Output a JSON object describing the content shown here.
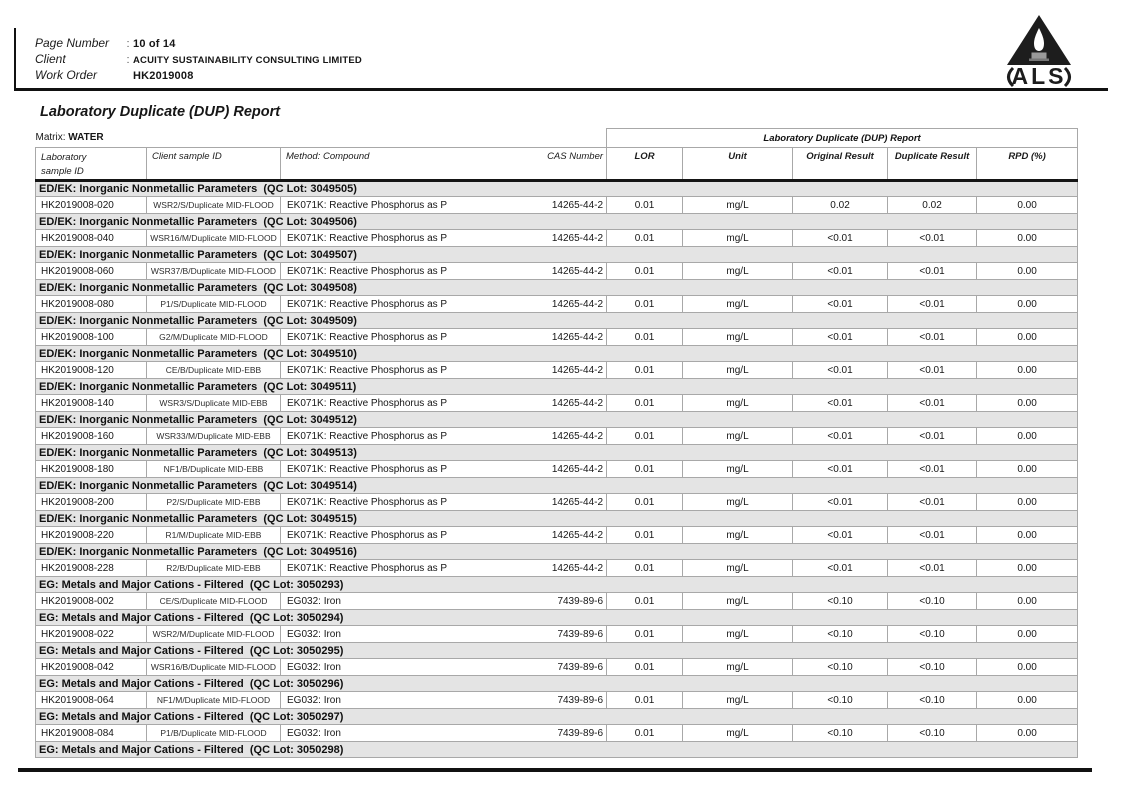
{
  "header": {
    "fields": [
      {
        "label": "Page Number",
        "sep": ":",
        "value": "10 of 14"
      },
      {
        "label": "Client",
        "sep": ":",
        "value": "ACUITY SUSTAINABILITY CONSULTING LIMITED"
      },
      {
        "label": "Work Order",
        "sep": "",
        "value": "HK2019008"
      }
    ],
    "logo": {
      "text": "ALS"
    }
  },
  "title": "Laboratory Duplicate (DUP) Report",
  "matrix": {
    "label": "Matrix:",
    "value": "WATER"
  },
  "table": {
    "group_header": "Laboratory Duplicate (DUP) Report",
    "columns": {
      "laboratory_line1": "Laboratory",
      "laboratory_line2": "sample ID",
      "client": "Client sample ID",
      "method": "Method: Compound",
      "cas": "CAS Number",
      "lor": "LOR",
      "unit": "Unit",
      "original": "Original Result",
      "duplicate": "Duplicate Result",
      "rpd": "RPD (%)"
    },
    "sections": [
      {
        "header": "ED/EK: Inorganic Nonmetallic Parameters  (QC Lot: 3049505)",
        "rows": [
          {
            "lab_id": "HK2019008-020",
            "client_id": "WSR2/S/Duplicate MID-FLOOD",
            "method": "EK071K: Reactive Phosphorus as P",
            "cas": "14265-44-2",
            "lor": "0.01",
            "unit": "mg/L",
            "original": "0.02",
            "duplicate": "0.02",
            "rpd": "0.00"
          }
        ]
      },
      {
        "header": "ED/EK: Inorganic Nonmetallic Parameters  (QC Lot: 3049506)",
        "rows": [
          {
            "lab_id": "HK2019008-040",
            "client_id": "WSR16/M/Duplicate MID-FLOOD",
            "method": "EK071K: Reactive Phosphorus as P",
            "cas": "14265-44-2",
            "lor": "0.01",
            "unit": "mg/L",
            "original": "<0.01",
            "duplicate": "<0.01",
            "rpd": "0.00"
          }
        ]
      },
      {
        "header": "ED/EK: Inorganic Nonmetallic Parameters  (QC Lot: 3049507)",
        "rows": [
          {
            "lab_id": "HK2019008-060",
            "client_id": "WSR37/B/Duplicate MID-FLOOD",
            "method": "EK071K: Reactive Phosphorus as P",
            "cas": "14265-44-2",
            "lor": "0.01",
            "unit": "mg/L",
            "original": "<0.01",
            "duplicate": "<0.01",
            "rpd": "0.00"
          }
        ]
      },
      {
        "header": "ED/EK: Inorganic Nonmetallic Parameters  (QC Lot: 3049508)",
        "rows": [
          {
            "lab_id": "HK2019008-080",
            "client_id": "P1/S/Duplicate MID-FLOOD",
            "method": "EK071K: Reactive Phosphorus as P",
            "cas": "14265-44-2",
            "lor": "0.01",
            "unit": "mg/L",
            "original": "<0.01",
            "duplicate": "<0.01",
            "rpd": "0.00"
          }
        ]
      },
      {
        "header": "ED/EK: Inorganic Nonmetallic Parameters  (QC Lot: 3049509)",
        "rows": [
          {
            "lab_id": "HK2019008-100",
            "client_id": "G2/M/Duplicate MID-FLOOD",
            "method": "EK071K: Reactive Phosphorus as P",
            "cas": "14265-44-2",
            "lor": "0.01",
            "unit": "mg/L",
            "original": "<0.01",
            "duplicate": "<0.01",
            "rpd": "0.00"
          }
        ]
      },
      {
        "header": "ED/EK: Inorganic Nonmetallic Parameters  (QC Lot: 3049510)",
        "rows": [
          {
            "lab_id": "HK2019008-120",
            "client_id": "CE/B/Duplicate MID-EBB",
            "method": "EK071K: Reactive Phosphorus as P",
            "cas": "14265-44-2",
            "lor": "0.01",
            "unit": "mg/L",
            "original": "<0.01",
            "duplicate": "<0.01",
            "rpd": "0.00"
          }
        ]
      },
      {
        "header": "ED/EK: Inorganic Nonmetallic Parameters  (QC Lot: 3049511)",
        "rows": [
          {
            "lab_id": "HK2019008-140",
            "client_id": "WSR3/S/Duplicate MID-EBB",
            "method": "EK071K: Reactive Phosphorus as P",
            "cas": "14265-44-2",
            "lor": "0.01",
            "unit": "mg/L",
            "original": "<0.01",
            "duplicate": "<0.01",
            "rpd": "0.00"
          }
        ]
      },
      {
        "header": "ED/EK: Inorganic Nonmetallic Parameters  (QC Lot: 3049512)",
        "rows": [
          {
            "lab_id": "HK2019008-160",
            "client_id": "WSR33/M/Duplicate MID-EBB",
            "method": "EK071K: Reactive Phosphorus as P",
            "cas": "14265-44-2",
            "lor": "0.01",
            "unit": "mg/L",
            "original": "<0.01",
            "duplicate": "<0.01",
            "rpd": "0.00"
          }
        ]
      },
      {
        "header": "ED/EK: Inorganic Nonmetallic Parameters  (QC Lot: 3049513)",
        "rows": [
          {
            "lab_id": "HK2019008-180",
            "client_id": "NF1/B/Duplicate MID-EBB",
            "method": "EK071K: Reactive Phosphorus as P",
            "cas": "14265-44-2",
            "lor": "0.01",
            "unit": "mg/L",
            "original": "<0.01",
            "duplicate": "<0.01",
            "rpd": "0.00"
          }
        ]
      },
      {
        "header": "ED/EK: Inorganic Nonmetallic Parameters  (QC Lot: 3049514)",
        "rows": [
          {
            "lab_id": "HK2019008-200",
            "client_id": "P2/S/Duplicate MID-EBB",
            "method": "EK071K: Reactive Phosphorus as P",
            "cas": "14265-44-2",
            "lor": "0.01",
            "unit": "mg/L",
            "original": "<0.01",
            "duplicate": "<0.01",
            "rpd": "0.00"
          }
        ]
      },
      {
        "header": "ED/EK: Inorganic Nonmetallic Parameters  (QC Lot: 3049515)",
        "rows": [
          {
            "lab_id": "HK2019008-220",
            "client_id": "R1/M/Duplicate MID-EBB",
            "method": "EK071K: Reactive Phosphorus as P",
            "cas": "14265-44-2",
            "lor": "0.01",
            "unit": "mg/L",
            "original": "<0.01",
            "duplicate": "<0.01",
            "rpd": "0.00"
          }
        ]
      },
      {
        "header": "ED/EK: Inorganic Nonmetallic Parameters  (QC Lot: 3049516)",
        "rows": [
          {
            "lab_id": "HK2019008-228",
            "client_id": "R2/B/Duplicate MID-EBB",
            "method": "EK071K: Reactive Phosphorus as P",
            "cas": "14265-44-2",
            "lor": "0.01",
            "unit": "mg/L",
            "original": "<0.01",
            "duplicate": "<0.01",
            "rpd": "0.00"
          }
        ]
      },
      {
        "header": "EG: Metals and Major Cations - Filtered  (QC Lot: 3050293)",
        "rows": [
          {
            "lab_id": "HK2019008-002",
            "client_id": "CE/S/Duplicate MID-FLOOD",
            "method": "EG032: Iron",
            "cas": "7439-89-6",
            "lor": "0.01",
            "unit": "mg/L",
            "original": "<0.10",
            "duplicate": "<0.10",
            "rpd": "0.00"
          }
        ]
      },
      {
        "header": "EG: Metals and Major Cations - Filtered  (QC Lot: 3050294)",
        "rows": [
          {
            "lab_id": "HK2019008-022",
            "client_id": "WSR2/M/Duplicate MID-FLOOD",
            "method": "EG032: Iron",
            "cas": "7439-89-6",
            "lor": "0.01",
            "unit": "mg/L",
            "original": "<0.10",
            "duplicate": "<0.10",
            "rpd": "0.00"
          }
        ]
      },
      {
        "header": "EG: Metals and Major Cations - Filtered  (QC Lot: 3050295)",
        "rows": [
          {
            "lab_id": "HK2019008-042",
            "client_id": "WSR16/B/Duplicate MID-FLOOD",
            "method": "EG032: Iron",
            "cas": "7439-89-6",
            "lor": "0.01",
            "unit": "mg/L",
            "original": "<0.10",
            "duplicate": "<0.10",
            "rpd": "0.00"
          }
        ]
      },
      {
        "header": "EG: Metals and Major Cations - Filtered  (QC Lot: 3050296)",
        "rows": [
          {
            "lab_id": "HK2019008-064",
            "client_id": "NF1/M/Duplicate MID-FLOOD",
            "method": "EG032: Iron",
            "cas": "7439-89-6",
            "lor": "0.01",
            "unit": "mg/L",
            "original": "<0.10",
            "duplicate": "<0.10",
            "rpd": "0.00"
          }
        ]
      },
      {
        "header": "EG: Metals and Major Cations - Filtered  (QC Lot: 3050297)",
        "rows": [
          {
            "lab_id": "HK2019008-084",
            "client_id": "P1/B/Duplicate MID-FLOOD",
            "method": "EG032: Iron",
            "cas": "7439-89-6",
            "lor": "0.01",
            "unit": "mg/L",
            "original": "<0.10",
            "duplicate": "<0.10",
            "rpd": "0.00"
          }
        ]
      },
      {
        "header": "EG: Metals and Major Cations - Filtered  (QC Lot: 3050298)",
        "rows": []
      }
    ]
  }
}
